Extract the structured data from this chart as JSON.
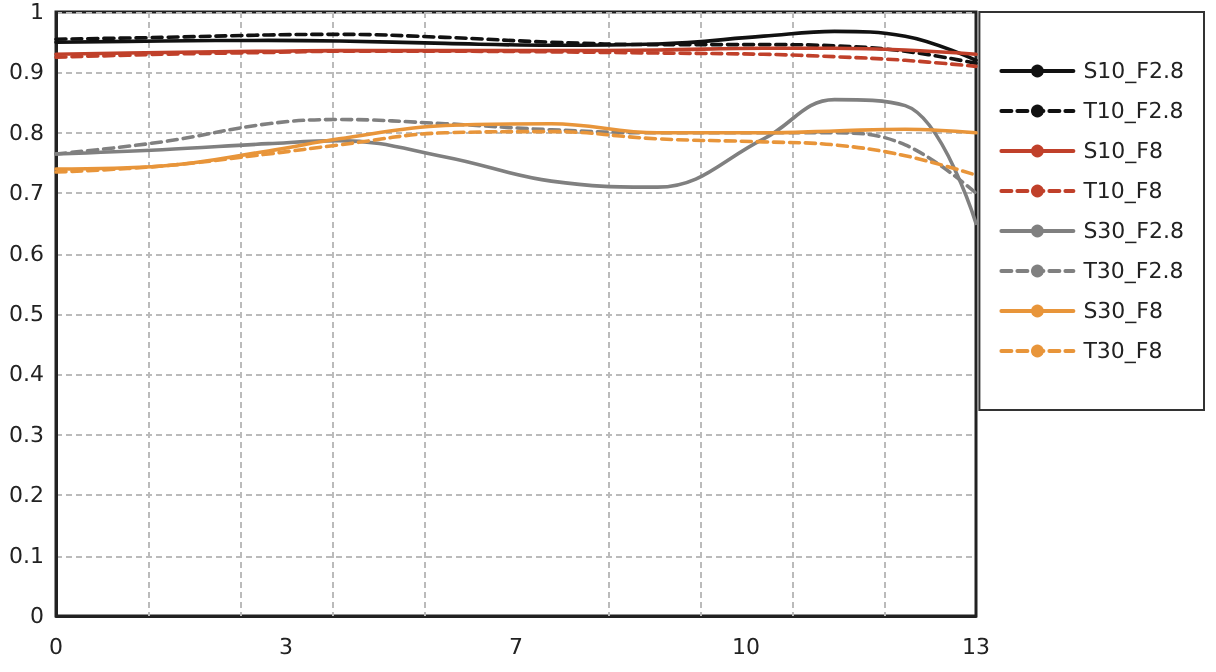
{
  "chart_data": {
    "type": "line",
    "x": [
      0,
      1.5,
      3,
      4,
      5.5,
      7,
      8.5,
      10,
      11,
      12,
      13
    ],
    "series": [
      {
        "name": "S10_F2.8",
        "color": "#111111",
        "line_style": "solid",
        "values": [
          0.95,
          0.952,
          0.953,
          0.952,
          0.948,
          0.945,
          0.947,
          0.96,
          0.968,
          0.96,
          0.92
        ]
      },
      {
        "name": "T10_F2.8",
        "color": "#111111",
        "line_style": "dashed",
        "values": [
          0.955,
          0.958,
          0.962,
          0.963,
          0.958,
          0.95,
          0.946,
          0.946,
          0.944,
          0.935,
          0.915
        ]
      },
      {
        "name": "S10_F8",
        "color": "#c0402a",
        "line_style": "solid",
        "values": [
          0.93,
          0.933,
          0.935,
          0.936,
          0.936,
          0.936,
          0.937,
          0.94,
          0.94,
          0.937,
          0.93
        ]
      },
      {
        "name": "T10_F8",
        "color": "#c0402a",
        "line_style": "dashed",
        "values": [
          0.925,
          0.93,
          0.933,
          0.935,
          0.935,
          0.934,
          0.932,
          0.93,
          0.926,
          0.92,
          0.91
        ]
      },
      {
        "name": "S30_F2.8",
        "color": "#808080",
        "line_style": "solid",
        "values": [
          0.765,
          0.772,
          0.782,
          0.787,
          0.76,
          0.72,
          0.71,
          0.79,
          0.855,
          0.845,
          0.65
        ]
      },
      {
        "name": "T30_F2.8",
        "color": "#808080",
        "line_style": "dashed",
        "values": [
          0.765,
          0.785,
          0.815,
          0.822,
          0.815,
          0.805,
          0.8,
          0.8,
          0.8,
          0.78,
          0.7
        ]
      },
      {
        "name": "S30_F8",
        "color": "#e8953a",
        "line_style": "solid",
        "values": [
          0.74,
          0.745,
          0.77,
          0.79,
          0.812,
          0.815,
          0.8,
          0.8,
          0.803,
          0.806,
          0.8
        ]
      },
      {
        "name": "T30_F8",
        "color": "#e8953a",
        "line_style": "dashed",
        "values": [
          0.735,
          0.745,
          0.765,
          0.78,
          0.8,
          0.802,
          0.79,
          0.785,
          0.78,
          0.762,
          0.73
        ]
      }
    ],
    "xlim": [
      0,
      13
    ],
    "xticks": [
      0,
      {
        "value": 1.3,
        "label": null
      },
      {
        "value": 2.6,
        "label": null
      },
      {
        "value": 3.25,
        "label": "3"
      },
      {
        "value": 3.9,
        "label": null
      },
      {
        "value": 5.2,
        "label": null
      },
      {
        "value": 6.5,
        "label": "7"
      },
      {
        "value": 7.8,
        "label": null
      },
      {
        "value": 9.1,
        "label": null
      },
      {
        "value": 9.75,
        "label": "10"
      },
      {
        "value": 10.4,
        "label": null
      },
      {
        "value": 11.7,
        "label": null
      },
      13
    ],
    "ylim": [
      0,
      1
    ],
    "yticks": [
      0,
      0.1,
      0.2,
      0.3,
      0.4,
      0.5,
      0.6,
      0.7,
      0.8,
      0.9,
      1
    ],
    "grid": true,
    "legend": "right",
    "marker": "none"
  }
}
